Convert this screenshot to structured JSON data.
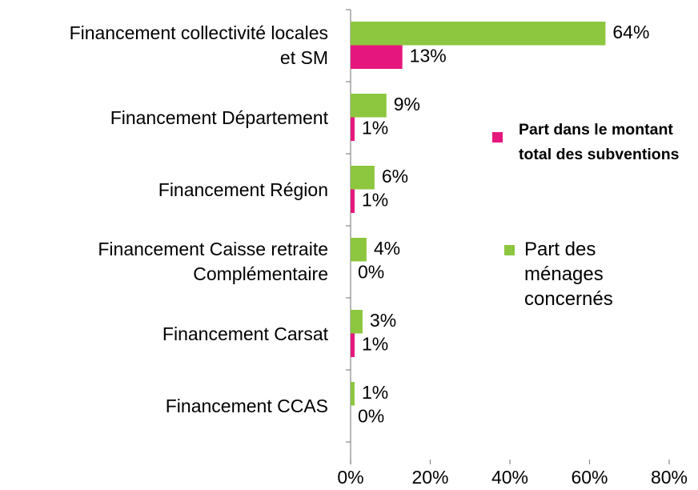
{
  "chart_data": {
    "type": "bar",
    "orientation": "horizontal",
    "categories": [
      "Financement collectivité locales et SM",
      "Financement Département",
      "Financement Région",
      "Financement Caisse retraite Complémentaire",
      "Financement Carsat",
      "Financement CCAS"
    ],
    "series": [
      {
        "name": "Part des ménages concernés",
        "color": "#8dc63f",
        "values": [
          64,
          9,
          6,
          4,
          3,
          1
        ],
        "value_labels": [
          "64%",
          "9%",
          "6%",
          "4%",
          "3%",
          "1%"
        ]
      },
      {
        "name": "Part dans le montant total des subventions",
        "color": "#e5177e",
        "values": [
          13,
          1,
          1,
          0,
          1,
          0
        ],
        "value_labels": [
          "13%",
          "1%",
          "1%",
          "0%",
          "1%",
          "0%"
        ]
      }
    ],
    "xlim": [
      0,
      80
    ],
    "xticks": [
      {
        "value": 0,
        "label": "0%"
      },
      {
        "value": 20,
        "label": "20%"
      },
      {
        "value": 40,
        "label": "40%"
      },
      {
        "value": 60,
        "label": "60%"
      },
      {
        "value": 80,
        "label": "80%"
      }
    ],
    "legend": "right"
  }
}
